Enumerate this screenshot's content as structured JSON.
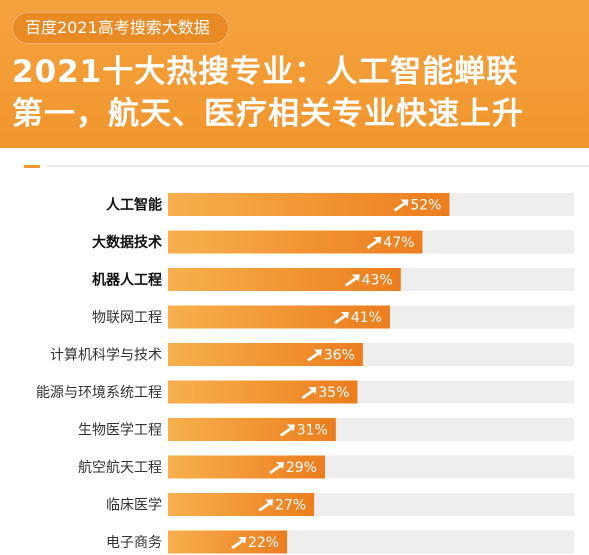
{
  "header": {
    "tag": "百度2021高考搜索大数据",
    "line1": "2021十大热搜专业：人工智能蝉联",
    "line2": "第一，航天、医疗相关专业快速上升"
  },
  "colors": {
    "header_bg": "#f4a23e",
    "bar_start": "#f7b04e",
    "bar_end": "#ec7d1e",
    "track": "#eeeeee"
  },
  "chart_data": {
    "type": "bar",
    "orientation": "horizontal",
    "categories": [
      "人工智能",
      "大数据技术",
      "机器人工程",
      "物联网工程",
      "计算机科学与技术",
      "能源与环境系统工程",
      "生物医学工程",
      "航空航天工程",
      "临床医学",
      "电子商务"
    ],
    "values": [
      52,
      47,
      43,
      41,
      36,
      35,
      31,
      29,
      27,
      22
    ],
    "labels": [
      "52%",
      "47%",
      "43%",
      "41%",
      "36%",
      "35%",
      "31%",
      "29%",
      "27%",
      "22%"
    ],
    "bold_categories": [
      0,
      1,
      2
    ],
    "xlim": [
      0,
      75
    ],
    "unit": "%"
  }
}
